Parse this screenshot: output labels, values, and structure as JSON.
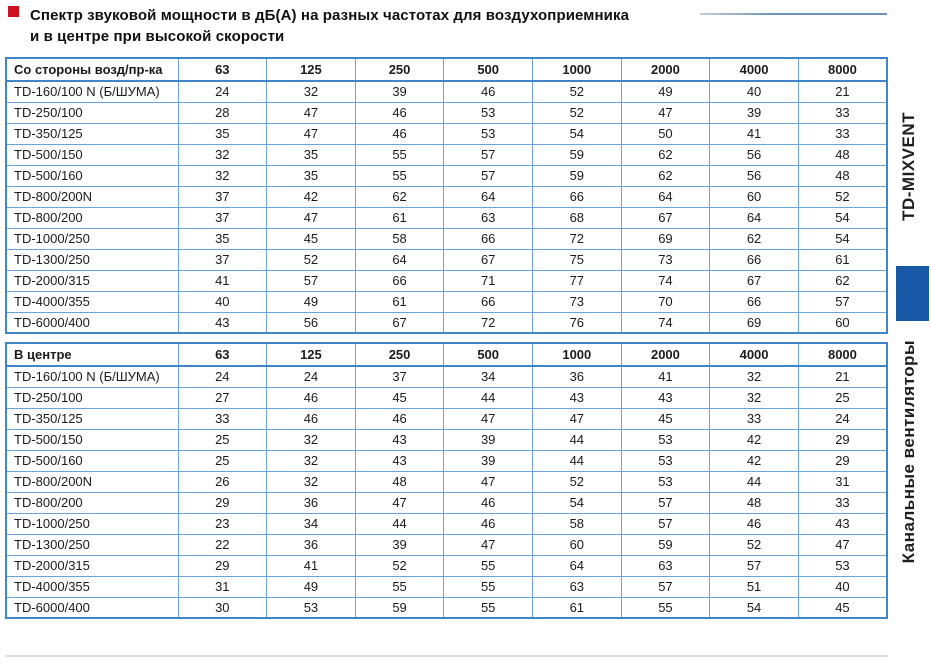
{
  "title": {
    "line1": "Спектр звуковой мощности в дБ(А) на разных частотах для воздухоприемника",
    "line2": "и в центре при высокой скорости"
  },
  "sidebar": {
    "series_label": "TD-MIXVENT",
    "category_label": "Канальные вентиляторы"
  },
  "colors": {
    "bullet_red": "#cf1222",
    "table_border_outer": "#3f85c8",
    "table_border_inner": "#6ba4dc",
    "sidebar_square_blue": "#1759a6",
    "title_rule": "#6e93b4",
    "text": "#1b1b1b"
  },
  "tables": [
    {
      "corner_label": "Со стороны возд/пр-ка",
      "frequency_headers": [
        "63",
        "125",
        "250",
        "500",
        "1000",
        "2000",
        "4000",
        "8000"
      ],
      "rows": [
        {
          "model": "TD-160/100 N (Б/ШУМА)",
          "values": [
            24,
            32,
            39,
            46,
            52,
            49,
            40,
            21
          ]
        },
        {
          "model": "TD-250/100",
          "values": [
            28,
            47,
            46,
            53,
            52,
            47,
            39,
            33
          ]
        },
        {
          "model": "TD-350/125",
          "values": [
            35,
            47,
            46,
            53,
            54,
            50,
            41,
            33
          ]
        },
        {
          "model": "TD-500/150",
          "values": [
            32,
            35,
            55,
            57,
            59,
            62,
            56,
            48
          ]
        },
        {
          "model": "TD-500/160",
          "values": [
            32,
            35,
            55,
            57,
            59,
            62,
            56,
            48
          ]
        },
        {
          "model": "TD-800/200N",
          "values": [
            37,
            42,
            62,
            64,
            66,
            64,
            60,
            52
          ]
        },
        {
          "model": "TD-800/200",
          "values": [
            37,
            47,
            61,
            63,
            68,
            67,
            64,
            54
          ]
        },
        {
          "model": "TD-1000/250",
          "values": [
            35,
            45,
            58,
            66,
            72,
            69,
            62,
            54
          ]
        },
        {
          "model": "TD-1300/250",
          "values": [
            37,
            52,
            64,
            67,
            75,
            73,
            66,
            61
          ]
        },
        {
          "model": "TD-2000/315",
          "values": [
            41,
            57,
            66,
            71,
            77,
            74,
            67,
            62
          ]
        },
        {
          "model": "TD-4000/355",
          "values": [
            40,
            49,
            61,
            66,
            73,
            70,
            66,
            57
          ]
        },
        {
          "model": "TD-6000/400",
          "values": [
            43,
            56,
            67,
            72,
            76,
            74,
            69,
            60
          ]
        }
      ]
    },
    {
      "corner_label": "В центре",
      "frequency_headers": [
        "63",
        "125",
        "250",
        "500",
        "1000",
        "2000",
        "4000",
        "8000"
      ],
      "rows": [
        {
          "model": "TD-160/100 N (Б/ШУМА)",
          "values": [
            24,
            24,
            37,
            34,
            36,
            41,
            32,
            21
          ]
        },
        {
          "model": "TD-250/100",
          "values": [
            27,
            46,
            45,
            44,
            43,
            43,
            32,
            25
          ]
        },
        {
          "model": "TD-350/125",
          "values": [
            33,
            46,
            46,
            47,
            47,
            45,
            33,
            24
          ]
        },
        {
          "model": "TD-500/150",
          "values": [
            25,
            32,
            43,
            39,
            44,
            53,
            42,
            29
          ]
        },
        {
          "model": "TD-500/160",
          "values": [
            25,
            32,
            43,
            39,
            44,
            53,
            42,
            29
          ]
        },
        {
          "model": "TD-800/200N",
          "values": [
            26,
            32,
            48,
            47,
            52,
            53,
            44,
            31
          ]
        },
        {
          "model": "TD-800/200",
          "values": [
            29,
            36,
            47,
            46,
            54,
            57,
            48,
            33
          ]
        },
        {
          "model": "TD-1000/250",
          "values": [
            23,
            34,
            44,
            46,
            58,
            57,
            46,
            43
          ]
        },
        {
          "model": "TD-1300/250",
          "values": [
            22,
            36,
            39,
            47,
            60,
            59,
            52,
            47
          ]
        },
        {
          "model": "TD-2000/315",
          "values": [
            29,
            41,
            52,
            55,
            64,
            63,
            57,
            53
          ]
        },
        {
          "model": "TD-4000/355",
          "values": [
            31,
            49,
            55,
            55,
            63,
            57,
            51,
            40
          ]
        },
        {
          "model": "TD-6000/400",
          "values": [
            30,
            53,
            59,
            55,
            61,
            55,
            54,
            45
          ]
        }
      ]
    }
  ]
}
